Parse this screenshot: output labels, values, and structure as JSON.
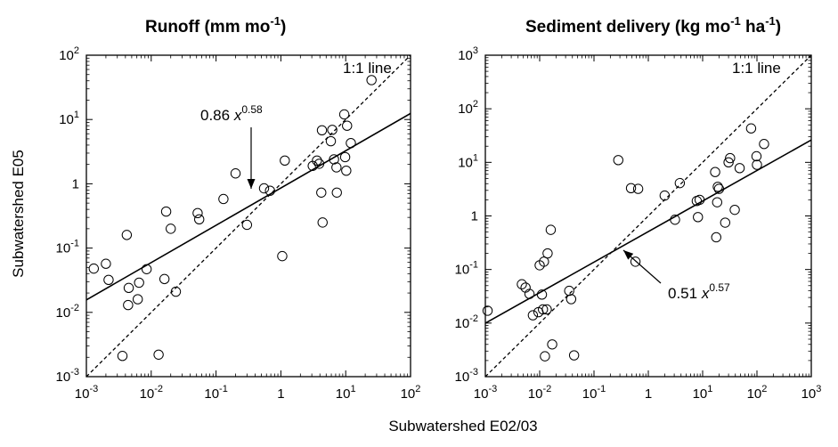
{
  "figure": {
    "shared_xlabel": "Subwatershed E02/03",
    "ylabel": "Subwatershed E05"
  },
  "chart_data": [
    {
      "type": "scatter",
      "title": "Runoff (mm mo-1)",
      "title_main": "Runoff  (mm mo",
      "title_unit_exp": "-1",
      "title_close": ")",
      "xscale": "log",
      "yscale": "log",
      "xlim": [
        0.001,
        100
      ],
      "ylim": [
        0.001,
        100
      ],
      "x_ticks": [
        {
          "base": "10",
          "exp": "-3"
        },
        {
          "base": "10",
          "exp": "-2"
        },
        {
          "base": "10",
          "exp": "-1"
        },
        {
          "base": "1",
          "exp": ""
        },
        {
          "base": "10",
          "exp": "1"
        },
        {
          "base": "10",
          "exp": "2"
        }
      ],
      "y_ticks": [
        {
          "base": "10",
          "exp": "-3"
        },
        {
          "base": "10",
          "exp": "-2"
        },
        {
          "base": "10",
          "exp": "-1"
        },
        {
          "base": "1",
          "exp": ""
        },
        {
          "base": "10",
          "exp": "1"
        },
        {
          "base": "10",
          "exp": "2"
        }
      ],
      "one_to_one_label": "1:1 line",
      "fit": {
        "a": 0.86,
        "b": 0.58,
        "label_coef": "0.86 ",
        "label_var": "x",
        "label_exp": "0.58"
      },
      "points": [
        [
          0.0013,
          0.048
        ],
        [
          0.002,
          0.057
        ],
        [
          0.0022,
          0.032
        ],
        [
          0.0036,
          0.0021
        ],
        [
          0.0042,
          0.16
        ],
        [
          0.0044,
          0.013
        ],
        [
          0.0045,
          0.024
        ],
        [
          0.0062,
          0.016
        ],
        [
          0.0065,
          0.029
        ],
        [
          0.0085,
          0.047
        ],
        [
          0.013,
          0.0022
        ],
        [
          0.016,
          0.033
        ],
        [
          0.017,
          0.37
        ],
        [
          0.02,
          0.2
        ],
        [
          0.024,
          0.021
        ],
        [
          0.052,
          0.35
        ],
        [
          0.055,
          0.28
        ],
        [
          0.13,
          0.58
        ],
        [
          0.2,
          1.45
        ],
        [
          0.3,
          0.23
        ],
        [
          0.55,
          0.85
        ],
        [
          0.68,
          0.78
        ],
        [
          1.05,
          0.075
        ],
        [
          1.15,
          2.3
        ],
        [
          3.1,
          1.9
        ],
        [
          3.6,
          2.3
        ],
        [
          3.9,
          2.05
        ],
        [
          4.2,
          0.73
        ],
        [
          4.3,
          6.8
        ],
        [
          4.4,
          0.25
        ],
        [
          5.9,
          4.6
        ],
        [
          6.2,
          6.9
        ],
        [
          6.6,
          2.4
        ],
        [
          7.2,
          1.8
        ],
        [
          7.3,
          0.73
        ],
        [
          9.5,
          12.0
        ],
        [
          9.8,
          2.6
        ],
        [
          10.2,
          1.6
        ],
        [
          10.5,
          8.0
        ],
        [
          12.0,
          4.3
        ],
        [
          25.0,
          41.0
        ]
      ]
    },
    {
      "type": "scatter",
      "title": "Sediment delivery (kg mo-1 ha-1)",
      "title_main": "Sediment delivery  (kg mo",
      "title_exp1": "-1",
      "title_mid": " ha",
      "title_exp2": "-1",
      "title_close": ")",
      "xscale": "log",
      "yscale": "log",
      "xlim": [
        0.001,
        1000
      ],
      "ylim": [
        0.001,
        1000
      ],
      "x_ticks": [
        {
          "base": "10",
          "exp": "-3"
        },
        {
          "base": "10",
          "exp": "-2"
        },
        {
          "base": "10",
          "exp": "-1"
        },
        {
          "base": "1",
          "exp": ""
        },
        {
          "base": "10",
          "exp": "1"
        },
        {
          "base": "10",
          "exp": "2"
        },
        {
          "base": "10",
          "exp": "3"
        }
      ],
      "y_ticks": [
        {
          "base": "10",
          "exp": "-3"
        },
        {
          "base": "10",
          "exp": "-2"
        },
        {
          "base": "10",
          "exp": "-1"
        },
        {
          "base": "1",
          "exp": ""
        },
        {
          "base": "10",
          "exp": "1"
        },
        {
          "base": "10",
          "exp": "2"
        },
        {
          "base": "10",
          "exp": "3"
        }
      ],
      "one_to_one_label": "1:1 line",
      "fit": {
        "a": 0.51,
        "b": 0.57,
        "label_coef": "0.51 ",
        "label_var": "x",
        "label_exp": "0.57"
      },
      "points": [
        [
          0.0011,
          0.017
        ],
        [
          0.0047,
          0.053
        ],
        [
          0.0055,
          0.046
        ],
        [
          0.0065,
          0.035
        ],
        [
          0.0075,
          0.014
        ],
        [
          0.0095,
          0.016
        ],
        [
          0.01,
          0.12
        ],
        [
          0.011,
          0.034
        ],
        [
          0.0115,
          0.018
        ],
        [
          0.012,
          0.14
        ],
        [
          0.0125,
          0.0024
        ],
        [
          0.0135,
          0.018
        ],
        [
          0.014,
          0.2
        ],
        [
          0.016,
          0.55
        ],
        [
          0.017,
          0.004
        ],
        [
          0.035,
          0.04
        ],
        [
          0.038,
          0.028
        ],
        [
          0.043,
          0.0025
        ],
        [
          0.28,
          11.0
        ],
        [
          0.48,
          3.3
        ],
        [
          0.58,
          0.14
        ],
        [
          0.65,
          3.2
        ],
        [
          2.0,
          2.4
        ],
        [
          3.1,
          0.85
        ],
        [
          3.8,
          4.1
        ],
        [
          7.8,
          1.9
        ],
        [
          8.2,
          0.95
        ],
        [
          8.8,
          2.0
        ],
        [
          17.0,
          6.6
        ],
        [
          17.8,
          0.4
        ],
        [
          18.5,
          1.8
        ],
        [
          19.0,
          3.5
        ],
        [
          20.0,
          3.2
        ],
        [
          26.0,
          0.75
        ],
        [
          30.0,
          10.0
        ],
        [
          32.0,
          12.0
        ],
        [
          39.0,
          1.3
        ],
        [
          48.0,
          7.8
        ],
        [
          78.0,
          43.0
        ],
        [
          98.0,
          13.0
        ],
        [
          100.0,
          9.0
        ],
        [
          135.0,
          22.0
        ]
      ]
    }
  ]
}
